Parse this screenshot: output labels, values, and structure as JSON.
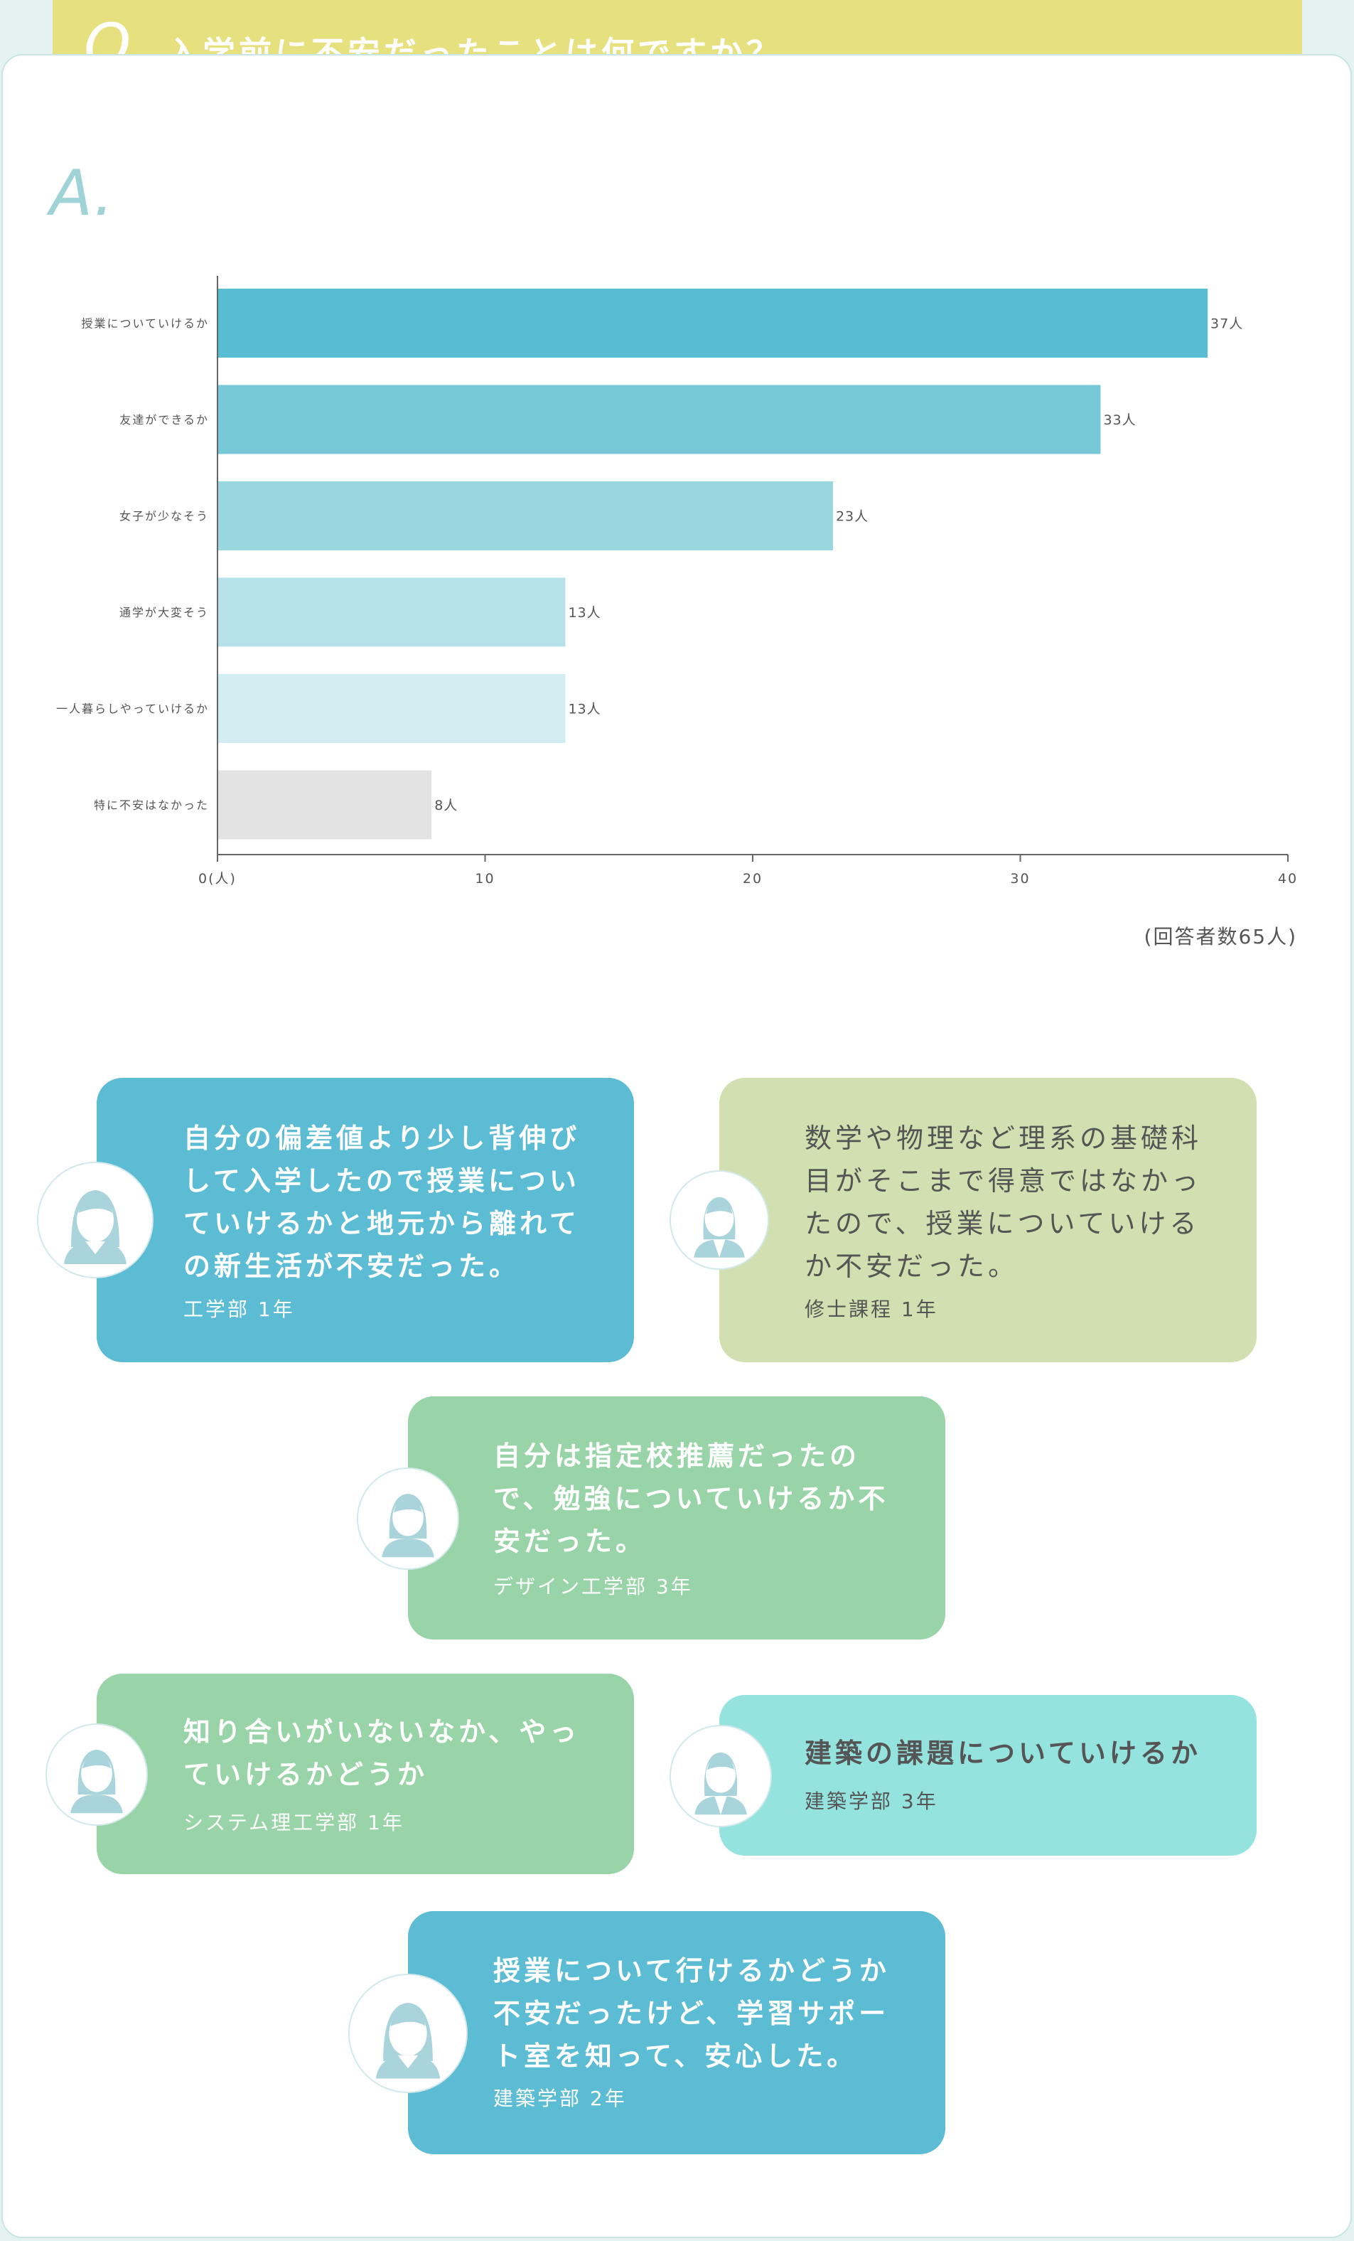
{
  "question": {
    "mark": "Q.",
    "text": "入学前に不安だったことは何ですか？"
  },
  "answer": {
    "mark": "A."
  },
  "chart_data": {
    "type": "bar",
    "orientation": "horizontal",
    "categories": [
      "授業についていけるか",
      "友達ができるか",
      "女子が少なそう",
      "通学が大変そう",
      "一人暮らしやっていけるか",
      "特に不安はなかった"
    ],
    "values": [
      37,
      33,
      23,
      13,
      13,
      8
    ],
    "value_labels": [
      "37人",
      "33人",
      "23人",
      "13人",
      "13人",
      "8人"
    ],
    "bar_colors": [
      "#58bdd2",
      "#76c8d7",
      "#98d6e0",
      "#b6e1e8",
      "#d3eef2",
      "#e3e3e3"
    ],
    "xticks": [
      "0(人)",
      "10",
      "20",
      "30",
      "40"
    ],
    "xlim": [
      0,
      40
    ],
    "grid": false,
    "note": "(回答者数65人)"
  },
  "comments": [
    {
      "quote": "自分の偏差値より少し背伸びして入学したので授業についていけるかと地元から離れての新生活が不安だった。",
      "department": "工学部 1年",
      "color": "#5bbcd3",
      "avatar": "female-student-icon"
    },
    {
      "quote": "数学や物理など理系の基礎科目がそこまで得意ではなかったので、授業についていけるか不安だった。",
      "department": "修士課程 1年",
      "color": "#d2dfb0",
      "avatar": "female-suit-icon"
    },
    {
      "quote": "自分は指定校推薦だったので、勉強についていけるか不安だった。",
      "department": "デザイン工学部 3年",
      "color": "#98d4a8",
      "avatar": "female-student-icon"
    },
    {
      "quote": "知り合いがいないなか、やっていけるかどうか",
      "department": "システム理工学部 1年",
      "color": "#98d4a8",
      "avatar": "female-student-icon"
    },
    {
      "quote": "建築の課題についていけるか",
      "department": "建築学部 3年",
      "color": "#95e3df",
      "avatar": "female-suit-icon"
    },
    {
      "quote": "授業について行けるかどうか不安だったけど、学習サポート室を知って、安心した。",
      "department": "建築学部 2年",
      "color": "#5bbcd3",
      "avatar": "female-student-icon"
    }
  ]
}
